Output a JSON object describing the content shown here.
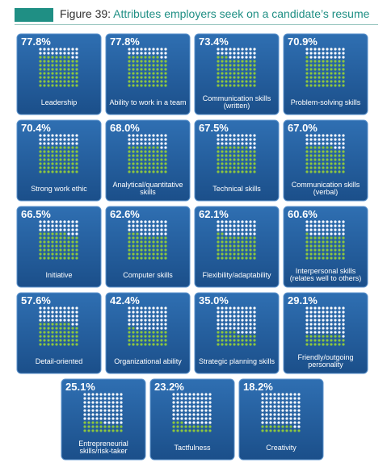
{
  "figure": {
    "label": "Figure 39:",
    "title": "Attributes employers seek on a candidate’s resume",
    "accent_color": "#1f8f84"
  },
  "chart_data": {
    "type": "icon-array",
    "title": "Attributes employers seek on a candidate’s resume",
    "unit": "percent",
    "colors": {
      "tile": "#2f6fb2",
      "tile_dark": "#1b4f8a",
      "filled_dot": "#8dc63f",
      "empty_dot": "#ffffff"
    },
    "items": [
      {
        "pct_label": "77.8%",
        "value": 77.8,
        "lines": [
          "Leadership"
        ]
      },
      {
        "pct_label": "77.8%",
        "value": 77.8,
        "lines": [
          "Ability to work in a team"
        ]
      },
      {
        "pct_label": "73.4%",
        "value": 73.4,
        "lines": [
          "Communication skills",
          "(written)"
        ]
      },
      {
        "pct_label": "70.9%",
        "value": 70.9,
        "lines": [
          "Problem-solving skills"
        ]
      },
      {
        "pct_label": "70.4%",
        "value": 70.4,
        "lines": [
          "Strong work ethic"
        ]
      },
      {
        "pct_label": "68.0%",
        "value": 68.0,
        "lines": [
          "Analytical/quantitative",
          "skills"
        ]
      },
      {
        "pct_label": "67.5%",
        "value": 67.5,
        "lines": [
          "Technical skills"
        ]
      },
      {
        "pct_label": "67.0%",
        "value": 67.0,
        "lines": [
          "Communication skills",
          "(verbal)"
        ]
      },
      {
        "pct_label": "66.5%",
        "value": 66.5,
        "lines": [
          "Initiative"
        ]
      },
      {
        "pct_label": "62.6%",
        "value": 62.6,
        "lines": [
          "Computer skills"
        ]
      },
      {
        "pct_label": "62.1%",
        "value": 62.1,
        "lines": [
          "Flexibility/adaptability"
        ]
      },
      {
        "pct_label": "60.6%",
        "value": 60.6,
        "lines": [
          "Interpersonal skills",
          "(relates well to others)"
        ]
      },
      {
        "pct_label": "57.6%",
        "value": 57.6,
        "lines": [
          "Detail-oriented"
        ]
      },
      {
        "pct_label": "42.4%",
        "value": 42.4,
        "lines": [
          "Organizational ability"
        ]
      },
      {
        "pct_label": "35.0%",
        "value": 35.0,
        "lines": [
          "Strategic planning skills"
        ]
      },
      {
        "pct_label": "29.1%",
        "value": 29.1,
        "lines": [
          "Friendly/outgoing",
          "personality"
        ]
      },
      {
        "pct_label": "25.1%",
        "value": 25.1,
        "lines": [
          "Entrepreneurial",
          "skills/risk-taker"
        ]
      },
      {
        "pct_label": "23.2%",
        "value": 23.2,
        "lines": [
          "Tactfulness"
        ]
      },
      {
        "pct_label": "18.2%",
        "value": 18.2,
        "lines": [
          "Creativity"
        ]
      }
    ]
  }
}
